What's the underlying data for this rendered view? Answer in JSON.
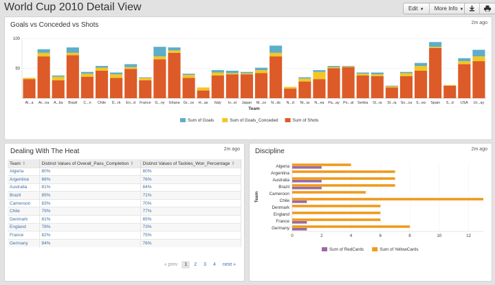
{
  "app": {
    "title": "World Cup 2010 Detail View",
    "edit_label": "Edit",
    "more_info_label": "More Info"
  },
  "colors": {
    "goals": "#5eaec9",
    "conceded": "#f3c623",
    "shots": "#dc5b28",
    "redcards": "#9b6aa3",
    "yellowcards": "#ef9a1c"
  },
  "panels": {
    "goals": {
      "title": "Goals vs Conceded vs Shots",
      "time": "2m ago"
    },
    "heat": {
      "title": "Dealing With The Heat",
      "time": "2m ago"
    },
    "discipline": {
      "title": "Discipline",
      "time": "2m ago"
    }
  },
  "heat_table": {
    "headers": [
      "Team",
      "Distinct Values of Overall_Pass_Completion",
      "Distinct Values of Tackles_Won_Percentage"
    ],
    "rows": [
      [
        "Algeria",
        "80%",
        "80%"
      ],
      [
        "Argentina",
        "86%",
        "76%"
      ],
      [
        "Australia",
        "81%",
        "84%"
      ],
      [
        "Brazil",
        "85%",
        "71%"
      ],
      [
        "Cameroon",
        "83%",
        "70%"
      ],
      [
        "Chile",
        "79%",
        "77%"
      ],
      [
        "Denmark",
        "81%",
        "85%"
      ],
      [
        "England",
        "78%",
        "73%"
      ],
      [
        "France",
        "82%",
        "75%"
      ],
      [
        "Germany",
        "84%",
        "76%"
      ]
    ],
    "pager": {
      "prev": "« prev",
      "pages": [
        "1",
        "2",
        "3",
        "4"
      ],
      "next": "next »"
    }
  },
  "chart_data": [
    {
      "type": "bar",
      "stacked": true,
      "categories": [
        "Al...a",
        "Ar...na",
        "A...lia",
        "Brazil",
        "C...n",
        "Chile",
        "D...rk",
        "En...d",
        "France",
        "G...ny",
        "Ghana",
        "Gr...ce",
        "H...as",
        "Italy",
        "Iv...st",
        "Japan",
        "M...co",
        "N...ds",
        "N...d",
        "Ni...ia",
        "N...ea",
        "Pa...ay",
        "Po...al",
        "Serbia",
        "Sl...ia",
        "Sl...ia",
        "So...ca",
        "S...ea",
        "Spain",
        "S...d",
        "USA",
        "Ur...ay"
      ],
      "xlabel": "Team",
      "ylabel": "",
      "ylim": [
        0,
        100
      ],
      "yticks": [
        50,
        100
      ],
      "series": [
        {
          "name": "Sum of Goals",
          "values": [
            0,
            6,
            2,
            9,
            3,
            3,
            3,
            5,
            1,
            16,
            5,
            2,
            0,
            4,
            4,
            2,
            4,
            12,
            0,
            2,
            3,
            2,
            1,
            2,
            3,
            1,
            2,
            5,
            8,
            0,
            5,
            11
          ]
        },
        {
          "name": "Sum of Goals_Conceded",
          "values": [
            2,
            6,
            6,
            4,
            5,
            5,
            6,
            3,
            4,
            5,
            4,
            5,
            5,
            5,
            2,
            2,
            5,
            6,
            3,
            5,
            12,
            2,
            1,
            3,
            3,
            2,
            5,
            8,
            2,
            1,
            5,
            8
          ]
        },
        {
          "name": "Sum of Shots",
          "values": [
            32,
            70,
            30,
            72,
            36,
            46,
            34,
            49,
            30,
            65,
            76,
            34,
            13,
            38,
            40,
            40,
            42,
            70,
            16,
            28,
            32,
            50,
            52,
            38,
            37,
            18,
            37,
            46,
            84,
            21,
            57,
            62
          ]
        }
      ]
    },
    {
      "type": "bar",
      "orientation": "horizontal",
      "categories": [
        "Algeria",
        "Argentina",
        "Australia",
        "Brazil",
        "Cameroon",
        "Chile",
        "Denmark",
        "England",
        "France",
        "Germany"
      ],
      "ylabel": "Team",
      "xlim": [
        0,
        13
      ],
      "xticks": [
        0,
        2,
        4,
        6,
        8,
        10,
        12
      ],
      "series": [
        {
          "name": "Sum of RedCards",
          "values": [
            2,
            0,
            2,
            2,
            0,
            1,
            0,
            0,
            1,
            1
          ]
        },
        {
          "name": "Sum of YellowCards",
          "values": [
            4,
            7,
            7,
            7,
            5,
            13,
            6,
            6,
            6,
            8
          ]
        }
      ]
    }
  ]
}
